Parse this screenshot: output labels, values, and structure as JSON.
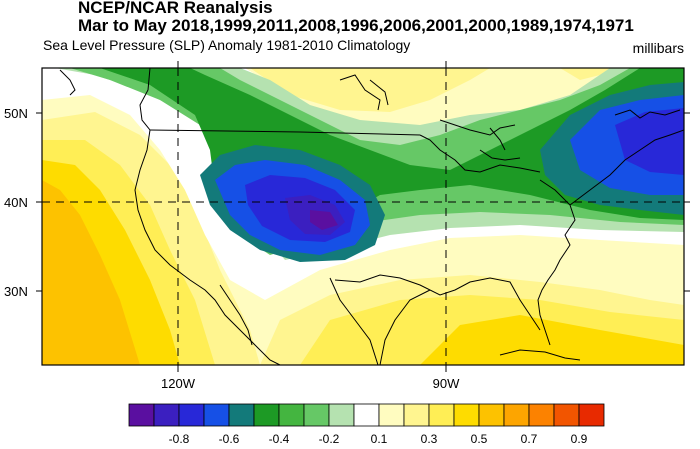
{
  "header": {
    "title": "NCEP/NCAR Reanalysis",
    "period": "Mar to May 2018,1999,2011,2008,1996,2006,2001,2000,1989,1974,1971",
    "subtitle": "Sea Level Pressure (SLP) Anomaly  1981-2010 Climatology",
    "units": "millibars"
  },
  "map": {
    "lat_labels": [
      "50N",
      "40N",
      "30N"
    ],
    "lon_labels": [
      "120W",
      "90W"
    ]
  },
  "colorbar": {
    "colors": [
      "#5a0fa0",
      "#3b1fc0",
      "#2828d8",
      "#1650e6",
      "#137a7a",
      "#1d9a25",
      "#44b540",
      "#66c866",
      "#b5e2b0",
      "#ffffff",
      "#fffcc0",
      "#fff590",
      "#ffee55",
      "#fedc00",
      "#fdc200",
      "#fda500",
      "#fc8200",
      "#f25500",
      "#e82a00"
    ],
    "labels": [
      "-0.8",
      "-0.6",
      "-0.4",
      "-0.2",
      "0.1",
      "0.3",
      "0.5",
      "0.7",
      "0.9"
    ]
  }
}
